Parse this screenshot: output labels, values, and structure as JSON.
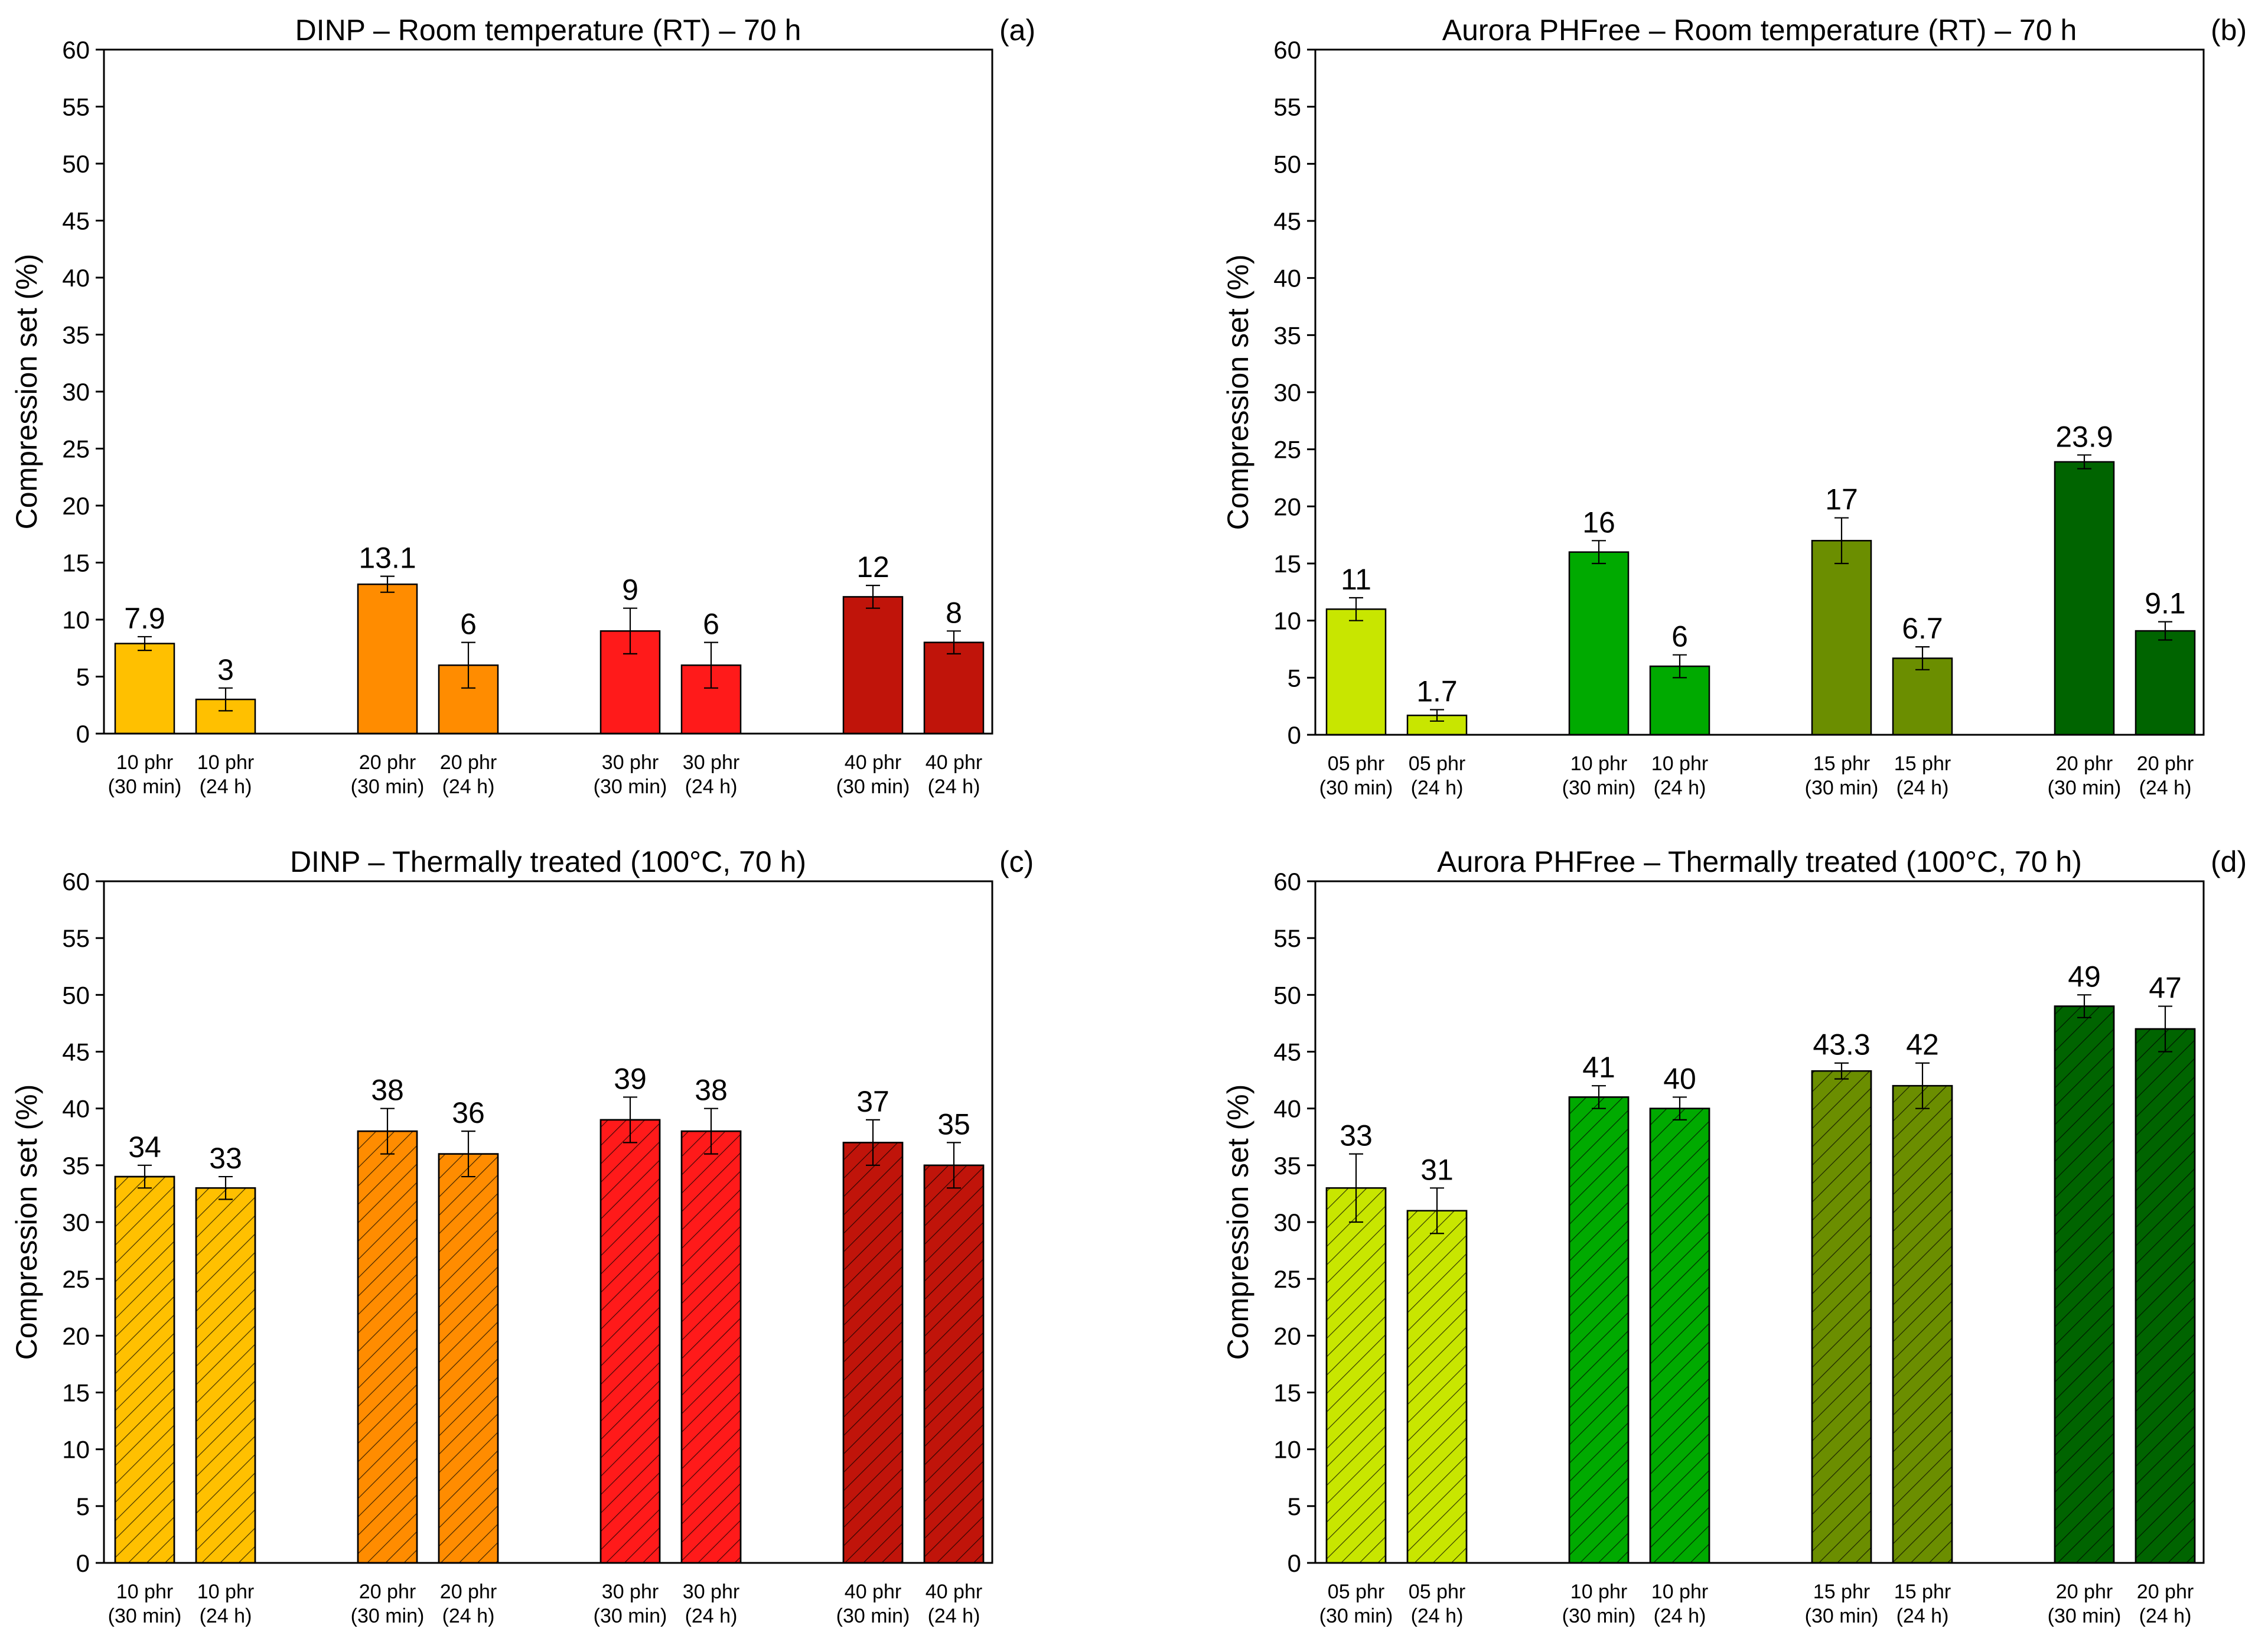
{
  "figure": {
    "panels": [
      {
        "panel_label": "(a)",
        "colors": [
          "#FFC000",
          "#FFC000",
          "#FF8C00",
          "#FF8C00",
          "#FF1A1A",
          "#FF1A1A",
          "#C0140A",
          "#C0140A"
        ],
        "hatched": false
      },
      {
        "panel_label": "(b)",
        "colors": [
          "#C8E600",
          "#C8E600",
          "#00AA00",
          "#00AA00",
          "#6B8E00",
          "#6B8E00",
          "#006400",
          "#006400"
        ],
        "hatched": false
      },
      {
        "panel_label": "(c)",
        "colors": [
          "#FFC000",
          "#FFC000",
          "#FF8C00",
          "#FF8C00",
          "#FF1A1A",
          "#FF1A1A",
          "#C0140A",
          "#C0140A"
        ],
        "hatched": true
      },
      {
        "panel_label": "(d)",
        "colors": [
          "#C8E600",
          "#C8E600",
          "#00AA00",
          "#00AA00",
          "#6B8E00",
          "#6B8E00",
          "#006400",
          "#006400"
        ],
        "hatched": true
      }
    ]
  },
  "chart_data": [
    {
      "type": "bar",
      "title": "DINP – Room temperature (RT) – 70 h",
      "xlabel": "",
      "ylabel": "Compression set (%)",
      "ylim": [
        0,
        60
      ],
      "yticks": [
        0,
        5,
        10,
        15,
        20,
        25,
        30,
        35,
        40,
        45,
        50,
        55,
        60
      ],
      "categories": [
        [
          "10 phr",
          "(30 min)"
        ],
        [
          "10 phr",
          "(24 h)"
        ],
        [
          "20 phr",
          "(30 min)"
        ],
        [
          "20 phr",
          "(24 h)"
        ],
        [
          "30 phr",
          "(30 min)"
        ],
        [
          "30 phr",
          "(24 h)"
        ],
        [
          "40 phr",
          "(30 min)"
        ],
        [
          "40 phr",
          "(24 h)"
        ]
      ],
      "values": [
        7.9,
        3,
        13.1,
        6,
        9,
        6,
        12,
        8
      ],
      "value_labels": [
        "7.9",
        "3",
        "13.1",
        "6",
        "9",
        "6",
        "12",
        "8"
      ],
      "errors": [
        0.6,
        1.0,
        0.7,
        2.0,
        2.0,
        2.0,
        1.0,
        1.0
      ]
    },
    {
      "type": "bar",
      "title": "Aurora PHFree – Room temperature (RT) – 70 h",
      "xlabel": "",
      "ylabel": "Compression set (%)",
      "ylim": [
        0,
        60
      ],
      "yticks": [
        0,
        5,
        10,
        15,
        20,
        25,
        30,
        35,
        40,
        45,
        50,
        55,
        60
      ],
      "categories": [
        [
          "05 phr",
          "(30 min)"
        ],
        [
          "05 phr",
          "(24 h)"
        ],
        [
          "10 phr",
          "(30 min)"
        ],
        [
          "10 phr",
          "(24 h)"
        ],
        [
          "15 phr",
          "(30 min)"
        ],
        [
          "15 phr",
          "(24 h)"
        ],
        [
          "20 phr",
          "(30 min)"
        ],
        [
          "20 phr",
          "(24 h)"
        ]
      ],
      "values": [
        11,
        1.7,
        16,
        6,
        17,
        6.7,
        23.9,
        9.1
      ],
      "value_labels": [
        "11",
        "1.7",
        "16",
        "6",
        "17",
        "6.7",
        "23.9",
        "9.1"
      ],
      "errors": [
        1.0,
        0.5,
        1.0,
        1.0,
        2.0,
        1.0,
        0.6,
        0.8
      ]
    },
    {
      "type": "bar",
      "title": "DINP – Thermally treated (100°C, 70 h)",
      "xlabel": "",
      "ylabel": "Compression set (%)",
      "ylim": [
        0,
        60
      ],
      "yticks": [
        0,
        5,
        10,
        15,
        20,
        25,
        30,
        35,
        40,
        45,
        50,
        55,
        60
      ],
      "categories": [
        [
          "10 phr",
          "(30 min)"
        ],
        [
          "10 phr",
          "(24 h)"
        ],
        [
          "20 phr",
          "(30 min)"
        ],
        [
          "20 phr",
          "(24 h)"
        ],
        [
          "30 phr",
          "(30 min)"
        ],
        [
          "30 phr",
          "(24 h)"
        ],
        [
          "40 phr",
          "(30 min)"
        ],
        [
          "40 phr",
          "(24 h)"
        ]
      ],
      "values": [
        34,
        33,
        38,
        36,
        39,
        38,
        37,
        35
      ],
      "value_labels": [
        "34",
        "33",
        "38",
        "36",
        "39",
        "38",
        "37",
        "35"
      ],
      "errors": [
        1.0,
        1.0,
        2.0,
        2.0,
        2.0,
        2.0,
        2.0,
        2.0
      ]
    },
    {
      "type": "bar",
      "title": "Aurora PHFree – Thermally treated (100°C, 70 h)",
      "xlabel": "",
      "ylabel": "Compression set (%)",
      "ylim": [
        0,
        60
      ],
      "yticks": [
        0,
        5,
        10,
        15,
        20,
        25,
        30,
        35,
        40,
        45,
        50,
        55,
        60
      ],
      "categories": [
        [
          "05 phr",
          "(30 min)"
        ],
        [
          "05 phr",
          "(24 h)"
        ],
        [
          "10 phr",
          "(30 min)"
        ],
        [
          "10 phr",
          "(24 h)"
        ],
        [
          "15 phr",
          "(30 min)"
        ],
        [
          "15 phr",
          "(24 h)"
        ],
        [
          "20 phr",
          "(30 min)"
        ],
        [
          "20 phr",
          "(24 h)"
        ]
      ],
      "values": [
        33,
        31,
        41,
        40,
        43.3,
        42,
        49,
        47
      ],
      "value_labels": [
        "33",
        "31",
        "41",
        "40",
        "43.3",
        "42",
        "49",
        "47"
      ],
      "errors": [
        3.0,
        2.0,
        1.0,
        1.0,
        0.7,
        2.0,
        1.0,
        2.0
      ]
    }
  ]
}
